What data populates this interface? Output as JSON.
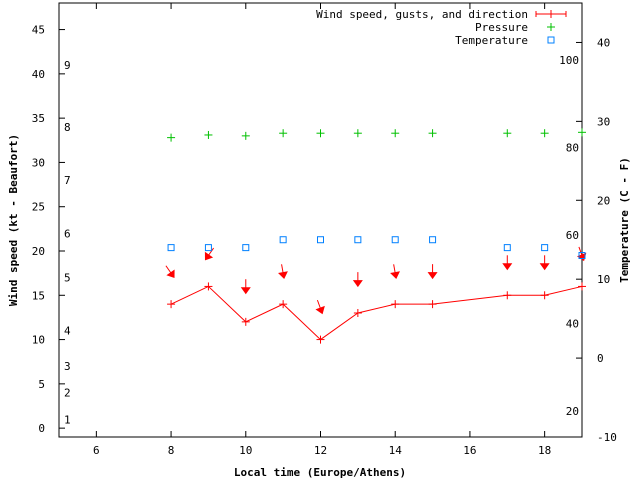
{
  "chart_data": {
    "type": "line",
    "xlabel": "Local time (Europe/Athens)",
    "ylabel": "Wind speed (kt - Beaufort)",
    "y2label": "Temperature (C - F)",
    "xlim": [
      5,
      19
    ],
    "ylim": [
      -1,
      48
    ],
    "y2lim": [
      -10,
      45
    ],
    "x_ticks": [
      6,
      8,
      10,
      12,
      14,
      16,
      18
    ],
    "y_ticks": [
      0,
      5,
      10,
      15,
      20,
      25,
      30,
      35,
      40,
      45
    ],
    "y2_ticks": [
      -10,
      0,
      10,
      20,
      30,
      40
    ],
    "beaufort_labels": [
      {
        "label": "1",
        "y": 1
      },
      {
        "label": "2",
        "y": 4
      },
      {
        "label": "3",
        "y": 7
      },
      {
        "label": "4",
        "y": 11
      },
      {
        "label": "5",
        "y": 17
      },
      {
        "label": "6",
        "y": 22
      },
      {
        "label": "7",
        "y": 28
      },
      {
        "label": "8",
        "y": 34
      },
      {
        "label": "9",
        "y": 41
      }
    ],
    "fahrenheit_labels": [
      {
        "label": "20",
        "c": -6.7
      },
      {
        "label": "40",
        "c": 4.4
      },
      {
        "label": "60",
        "c": 15.6
      },
      {
        "label": "80",
        "c": 26.7
      },
      {
        "label": "100",
        "c": 37.8
      }
    ],
    "legend": [
      {
        "label": "Wind speed, gusts, and direction",
        "marker": "line-plus",
        "color": "#ff0000"
      },
      {
        "label": "Pressure",
        "marker": "plus",
        "color": "#00c000"
      },
      {
        "label": "Temperature",
        "marker": "square",
        "color": "#0080ff"
      }
    ],
    "series": [
      {
        "name": "Wind speed",
        "axis": "y",
        "x": [
          8,
          9,
          10,
          11,
          12,
          13,
          14,
          15,
          17,
          18,
          19
        ],
        "values": [
          14,
          16,
          12,
          14,
          10,
          13,
          14,
          14,
          15,
          15,
          16
        ]
      },
      {
        "name": "Wind direction",
        "axis": "y",
        "x": [
          8,
          9,
          10,
          11,
          12,
          13,
          14,
          15,
          17,
          18,
          19
        ],
        "values": [
          17.5,
          19.5,
          15.8,
          17.5,
          13.5,
          16.6,
          17.5,
          17.5,
          18.5,
          18.5,
          19.5
        ],
        "direction_deg": [
          145,
          215,
          180,
          170,
          160,
          180,
          170,
          180,
          180,
          180,
          160
        ]
      },
      {
        "name": "Pressure",
        "axis": "y",
        "x": [
          8,
          9,
          10,
          11,
          12,
          13,
          14,
          15,
          17,
          18,
          19
        ],
        "values": [
          32.8,
          33.1,
          33.0,
          33.3,
          33.3,
          33.3,
          33.3,
          33.3,
          33.3,
          33.3,
          33.4
        ]
      },
      {
        "name": "Temperature",
        "axis": "y2",
        "x": [
          8,
          9,
          10,
          11,
          12,
          13,
          14,
          15,
          17,
          18,
          19
        ],
        "values": [
          14,
          14,
          14,
          15,
          15,
          15,
          15,
          15,
          14,
          14,
          13
        ]
      }
    ]
  }
}
